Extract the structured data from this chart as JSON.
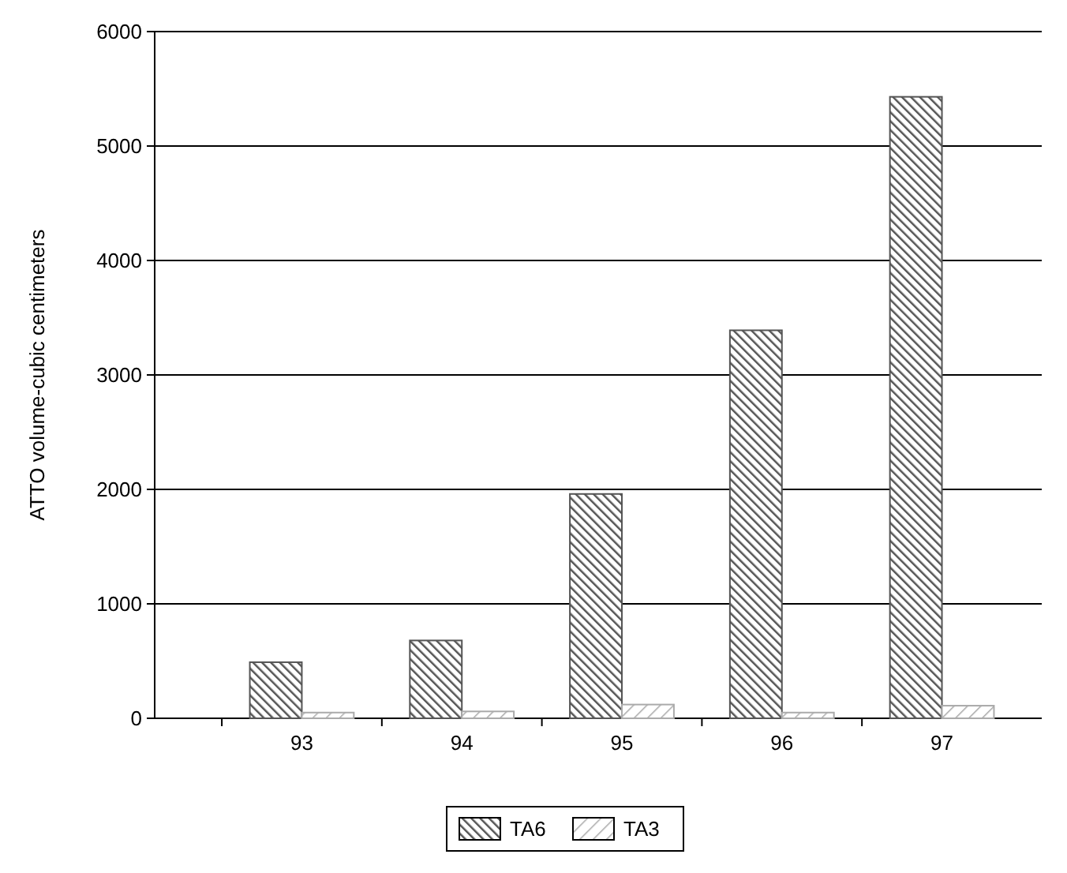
{
  "chart_data": {
    "type": "bar",
    "ylabel": "ATTO volume-cubic centimeters",
    "categories": [
      "93",
      "94",
      "95",
      "96",
      "97"
    ],
    "series": [
      {
        "name": "TA6",
        "color": "#555555",
        "values": [
          490,
          680,
          1960,
          3390,
          5430
        ]
      },
      {
        "name": "TA3",
        "color": "#aaaaaa",
        "values": [
          50,
          60,
          120,
          50,
          110
        ]
      }
    ],
    "ylim": [
      0,
      6000
    ],
    "yticks": [
      0,
      1000,
      2000,
      3000,
      4000,
      5000,
      6000
    ],
    "grid": "y",
    "legend": "bottom"
  }
}
